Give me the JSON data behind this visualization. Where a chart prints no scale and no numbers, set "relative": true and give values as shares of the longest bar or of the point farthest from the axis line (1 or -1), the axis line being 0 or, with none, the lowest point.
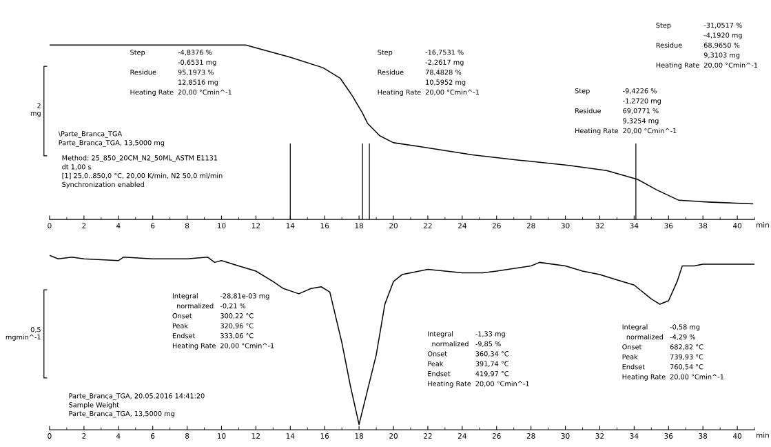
{
  "chart_data": [
    {
      "type": "line",
      "relative": true,
      "xlim": [
        0,
        41
      ],
      "xticks": [
        0,
        2,
        4,
        6,
        8,
        10,
        12,
        14,
        16,
        18,
        20,
        22,
        24,
        26,
        28,
        30,
        32,
        34,
        36,
        38,
        40
      ],
      "xlabel": "min",
      "ylabel": "2\nmg",
      "x": [
        0,
        11.4,
        14.0,
        15.9,
        16.9,
        17.6,
        18.2,
        18.5,
        19.2,
        20.0,
        21.4,
        24.6,
        27.3,
        30.2,
        32.4,
        34.2,
        35.3,
        36.6,
        38.3,
        40.9
      ],
      "series": [
        {
          "color": "#000000",
          "values": [
            1.0,
            1.0,
            0.93,
            0.87,
            0.81,
            0.71,
            0.61,
            0.55,
            0.48,
            0.44,
            0.42,
            0.37,
            0.34,
            0.31,
            0.28,
            0.23,
            0.17,
            0.11,
            0.1,
            0.09
          ]
        }
      ],
      "ref_lines": [
        {
          "axis": "x",
          "value": 14.0,
          "color": "#000000"
        },
        {
          "axis": "x",
          "value": 18.2,
          "color": "#000000"
        },
        {
          "axis": "x",
          "value": 18.6,
          "color": "#000000"
        },
        {
          "axis": "x",
          "value": 34.1,
          "color": "#000000"
        }
      ],
      "annotations": [
        "Step\t-4,8376 %\n\t-0,6531 mg\nResidue\t95,1973 %\n\t12,8516 mg\nHeating Rate\t20,00 °Cmin^-1",
        "Step\t-16,7531 %\n\t-2,2617 mg\nResidue\t78,4828 %\n\t10,5952 mg\nHeating Rate\t20,00 °Cmin^-1",
        "Step\t-9,4226 %\n\t-1,2720 mg\nResidue\t69,0771 %\n\t9,3254 mg\nHeating Rate\t20,00 °Cmin^-1",
        "Step\t-31,0517 %\n\t-4,1920 mg\nResidue\t68,9650 %\n\t9,3103 mg\nHeating Rate\t20,00 °Cmin^-1",
        "\\Parte_Branca_TGA\nParte_Branca_TGA, 13,5000 mg",
        "Method: 25_850_20CM_N2_50ML_ASTM E1131\ndt 1,00 s\n[1] 25,0..850,0 °C, 20,00 K/min, N2 50,0 ml/min\nSynchronization enabled"
      ]
    },
    {
      "type": "line",
      "relative": true,
      "xlim": [
        0,
        41
      ],
      "xticks": [
        0,
        2,
        4,
        6,
        8,
        10,
        12,
        14,
        16,
        18,
        20,
        22,
        24,
        26,
        28,
        30,
        32,
        34,
        36,
        38,
        40
      ],
      "xlabel": "min",
      "ylabel": "0,5\nmgmin^-1",
      "x": [
        0,
        0.5,
        1.3,
        2,
        4,
        4.3,
        6,
        8,
        9.2,
        9.6,
        10,
        11,
        12,
        13,
        13.6,
        14.5,
        15.2,
        15.8,
        16.3,
        17,
        17.5,
        18,
        19,
        19.5,
        20,
        20.5,
        21,
        22,
        24,
        25.2,
        26,
        28,
        28.5,
        30,
        31,
        32,
        33,
        34,
        35,
        35.5,
        36,
        36.5,
        36.8,
        37.5,
        38,
        40,
        41
      ],
      "series": [
        {
          "color": "#000000",
          "values": [
            1.0,
            0.98,
            0.99,
            0.98,
            0.97,
            0.99,
            0.98,
            0.98,
            0.99,
            0.96,
            0.97,
            0.94,
            0.91,
            0.85,
            0.81,
            0.78,
            0.81,
            0.82,
            0.79,
            0.5,
            0.25,
            0.03,
            0.43,
            0.72,
            0.85,
            0.89,
            0.9,
            0.92,
            0.9,
            0.9,
            0.91,
            0.94,
            0.96,
            0.94,
            0.91,
            0.89,
            0.86,
            0.83,
            0.75,
            0.72,
            0.74,
            0.85,
            0.94,
            0.94,
            0.95,
            0.95,
            0.95
          ]
        }
      ],
      "annotations": [
        "Integral\t-28,81e-03 mg\n  normalized\t-0,21 %\nOnset\t300,22 °C\nPeak\t320,96 °C\nEndset\t333,06 °C\nHeating Rate\t20,00 °Cmin^-1",
        "Integral\t-1,33 mg\n  normalized\t-9,85 %\nOnset\t360,34 °C\nPeak\t391,74 °C\nEndset\t419,97 °C\nHeating Rate\t20,00 °Cmin^-1",
        "Integral\t-0,58 mg\n  normalized\t-4,29 %\nOnset\t682,82 °C\nPeak\t739,93 °C\nEndset\t760,54 °C\nHeating Rate\t20,00 °Cmin^-1",
        "Parte_Branca_TGA, 20.05.2016 14:41:20\nSample Weight\nParte_Branca_TGA, 13,5000 mg"
      ]
    }
  ]
}
